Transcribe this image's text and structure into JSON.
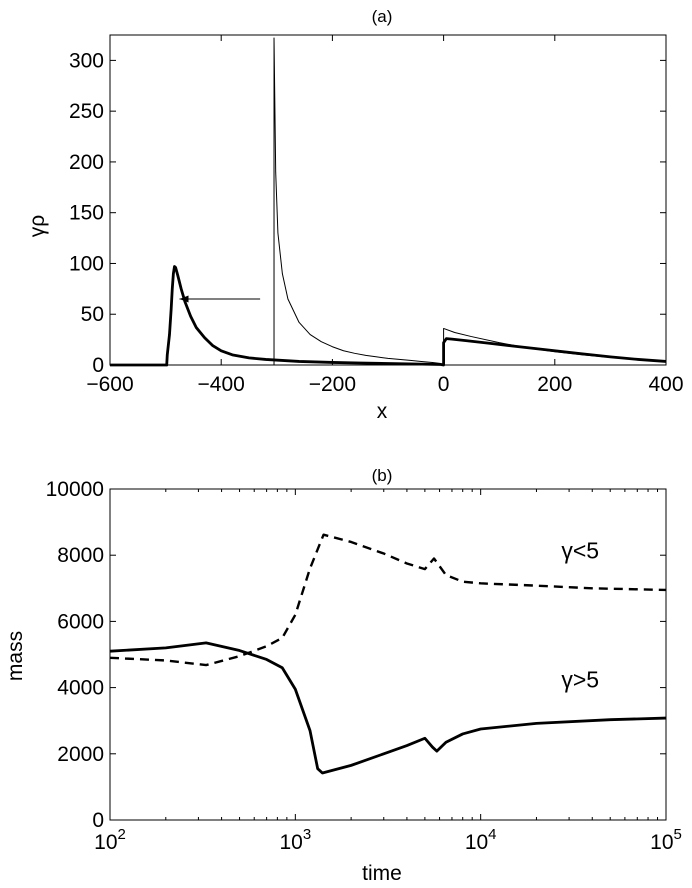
{
  "chart_data": [
    {
      "type": "line",
      "title": "(a)",
      "xlabel": "x",
      "ylabel": "γρ",
      "xlim": [
        -600,
        400
      ],
      "ylim": [
        0,
        325
      ],
      "x_ticks": [
        -600,
        -400,
        -200,
        0,
        200,
        400
      ],
      "x_tick_labels": [
        "−600",
        "−400",
        "−200",
        "0",
        "200",
        "400"
      ],
      "y_ticks": [
        0,
        50,
        100,
        150,
        200,
        250,
        300
      ],
      "y_tick_labels": [
        "0",
        "50",
        "100",
        "150",
        "200",
        "250",
        "300"
      ],
      "grid": false,
      "series": [
        {
          "style": "thin",
          "color": "#000000",
          "points": [
            [
              -600,
              0
            ],
            [
              -305,
              0
            ],
            [
              -305,
              322
            ],
            [
              -302,
              190
            ],
            [
              -298,
              130
            ],
            [
              -290,
              90
            ],
            [
              -280,
              65
            ],
            [
              -260,
              42
            ],
            [
              -240,
              30
            ],
            [
              -220,
              23
            ],
            [
              -200,
              18
            ],
            [
              -180,
              14
            ],
            [
              -160,
              11.5
            ],
            [
              -140,
              9.5
            ],
            [
              -120,
              8
            ],
            [
              -100,
              6.5
            ],
            [
              -80,
              5.5
            ],
            [
              -60,
              4.5
            ],
            [
              -40,
              3.5
            ],
            [
              -20,
              2.5
            ],
            [
              -5,
              1.5
            ],
            [
              0,
              0
            ],
            [
              0,
              36
            ],
            [
              20,
              32
            ],
            [
              50,
              28
            ],
            [
              100,
              22
            ],
            [
              150,
              17
            ],
            [
              200,
              13
            ],
            [
              250,
              10
            ],
            [
              300,
              7.5
            ],
            [
              350,
              5.5
            ],
            [
              400,
              4
            ]
          ]
        },
        {
          "style": "thick",
          "color": "#000000",
          "points": [
            [
              -600,
              0
            ],
            [
              -498,
              0
            ],
            [
              -497,
              10
            ],
            [
              -493,
              30
            ],
            [
              -490,
              55
            ],
            [
              -488,
              75
            ],
            [
              -486,
              90
            ],
            [
              -484,
              97
            ],
            [
              -482,
              96
            ],
            [
              -478,
              88
            ],
            [
              -472,
              75
            ],
            [
              -465,
              62
            ],
            [
              -455,
              48
            ],
            [
              -445,
              37
            ],
            [
              -430,
              27
            ],
            [
              -415,
              19
            ],
            [
              -400,
              14
            ],
            [
              -380,
              10
            ],
            [
              -350,
              7
            ],
            [
              -320,
              5.5
            ],
            [
              -290,
              4.5
            ],
            [
              -260,
              3.5
            ],
            [
              -230,
              3
            ],
            [
              -200,
              2.5
            ],
            [
              -150,
              2
            ],
            [
              -100,
              1.5
            ],
            [
              -50,
              1
            ],
            [
              -5,
              0.5
            ],
            [
              0,
              0
            ],
            [
              0,
              22
            ],
            [
              5,
              26
            ],
            [
              15,
              25.5
            ],
            [
              40,
              24
            ],
            [
              80,
              21.5
            ],
            [
              120,
              19
            ],
            [
              160,
              16.5
            ],
            [
              200,
              14
            ],
            [
              250,
              11
            ],
            [
              300,
              8
            ],
            [
              350,
              5.5
            ],
            [
              400,
              3.5
            ]
          ]
        }
      ],
      "annotations": [
        {
          "type": "arrow",
          "from": [
            -330,
            65
          ],
          "to": [
            -475,
            65
          ]
        }
      ]
    },
    {
      "type": "line",
      "title": "(b)",
      "xlabel": "time",
      "ylabel": "mass",
      "x_scale": "log",
      "xlim": [
        100,
        100000
      ],
      "ylim": [
        0,
        10000
      ],
      "x_ticks": [
        100,
        1000,
        10000,
        100000
      ],
      "x_tick_labels": [
        {
          "base": "10",
          "exp": "2"
        },
        {
          "base": "10",
          "exp": "3"
        },
        {
          "base": "10",
          "exp": "4"
        },
        {
          "base": "10",
          "exp": "5"
        }
      ],
      "y_ticks": [
        0,
        2000,
        4000,
        6000,
        8000,
        10000
      ],
      "y_tick_labels": [
        "0",
        "2000",
        "4000",
        "6000",
        "8000",
        "10000"
      ],
      "grid": false,
      "series": [
        {
          "name": "γ<5",
          "style": "dashed",
          "color": "#000000",
          "points": [
            [
              100,
              4900
            ],
            [
              200,
              4820
            ],
            [
              330,
              4680
            ],
            [
              500,
              4950
            ],
            [
              700,
              5250
            ],
            [
              850,
              5500
            ],
            [
              1000,
              6200
            ],
            [
              1200,
              7600
            ],
            [
              1420,
              8620
            ],
            [
              2000,
              8400
            ],
            [
              3000,
              8050
            ],
            [
              4000,
              7750
            ],
            [
              5000,
              7580
            ],
            [
              5600,
              7900
            ],
            [
              6500,
              7400
            ],
            [
              8000,
              7200
            ],
            [
              10000,
              7150
            ],
            [
              20000,
              7080
            ],
            [
              40000,
              7000
            ],
            [
              100000,
              6950
            ]
          ]
        },
        {
          "name": "γ>5",
          "style": "solid",
          "color": "#000000",
          "points": [
            [
              100,
              5100
            ],
            [
              200,
              5200
            ],
            [
              330,
              5350
            ],
            [
              500,
              5120
            ],
            [
              700,
              4850
            ],
            [
              850,
              4600
            ],
            [
              1000,
              3950
            ],
            [
              1200,
              2700
            ],
            [
              1320,
              1550
            ],
            [
              1400,
              1420
            ],
            [
              2000,
              1650
            ],
            [
              3000,
              2000
            ],
            [
              4000,
              2250
            ],
            [
              5000,
              2470
            ],
            [
              5500,
              2200
            ],
            [
              5800,
              2080
            ],
            [
              6500,
              2350
            ],
            [
              8000,
              2600
            ],
            [
              10000,
              2750
            ],
            [
              20000,
              2920
            ],
            [
              50000,
              3030
            ],
            [
              100000,
              3080
            ]
          ]
        }
      ],
      "annotations": [
        {
          "type": "label",
          "text": "γ<5",
          "at": [
            40000,
            7900
          ]
        },
        {
          "type": "label",
          "text": "γ>5",
          "at": [
            40000,
            4000
          ]
        }
      ]
    }
  ]
}
